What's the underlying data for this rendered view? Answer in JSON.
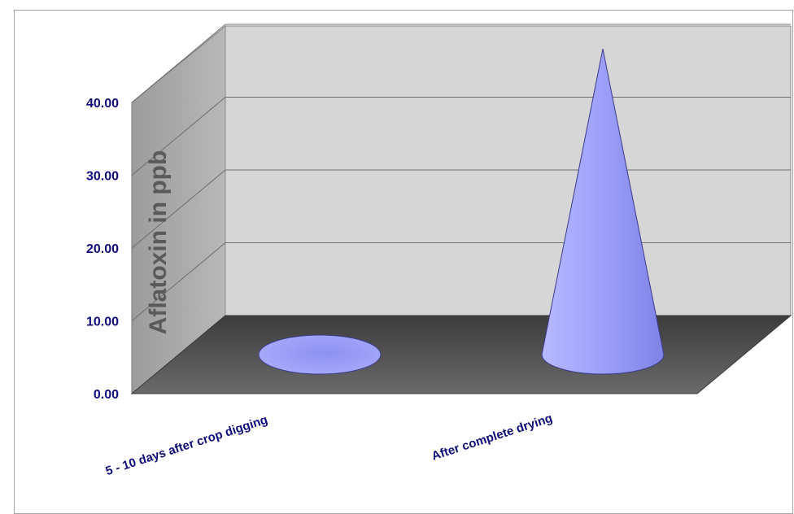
{
  "chart_data": {
    "type": "bar",
    "bar_shape": "cone-3d",
    "categories": [
      "5 - 10 days after crop digging",
      "After complete drying"
    ],
    "series": [
      {
        "values": [
          0.1,
          42.0
        ]
      }
    ],
    "ylabel": "Aflatoxin in ppb",
    "yticks": [
      "0.00",
      "10.00",
      "20.00",
      "30.00",
      "40.00"
    ],
    "ylim": [
      0,
      40
    ],
    "grid": true,
    "legend": "none",
    "colors": {
      "cone": "#9a9cf8",
      "back_wall": "#d4d4d4",
      "side_wall": "#a8a8a8",
      "floor": "#555555",
      "text": "#0d0d7a"
    }
  }
}
